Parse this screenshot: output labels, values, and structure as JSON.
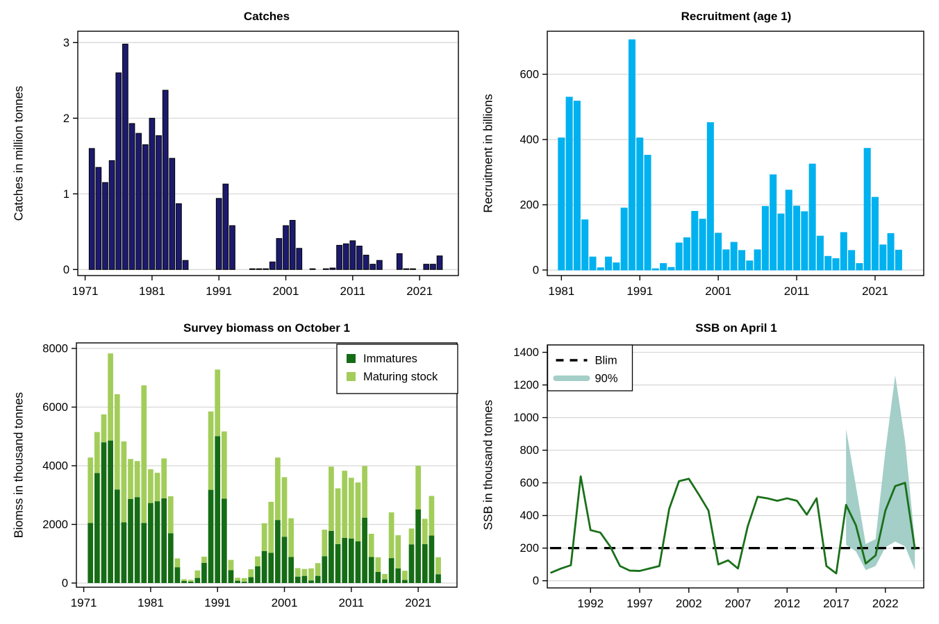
{
  "chart_data": [
    {
      "id": "catches",
      "type": "bar",
      "title": "Catches",
      "ylabel": "Catches in million tonnes",
      "bar_color": "#1c1a6e",
      "bar_stroke": "#000000",
      "ylim": [
        0,
        3
      ],
      "yticks": [
        0,
        1,
        2,
        3
      ],
      "xticks": [
        1971,
        1981,
        1991,
        2001,
        2011,
        2021
      ],
      "grid": true,
      "years": [
        1972,
        1973,
        1974,
        1975,
        1976,
        1977,
        1978,
        1979,
        1980,
        1981,
        1982,
        1983,
        1984,
        1985,
        1986,
        1987,
        1988,
        1989,
        1990,
        1991,
        1992,
        1993,
        1994,
        1995,
        1996,
        1997,
        1998,
        1999,
        2000,
        2001,
        2002,
        2003,
        2004,
        2005,
        2006,
        2007,
        2008,
        2009,
        2010,
        2011,
        2012,
        2013,
        2014,
        2015,
        2016,
        2017,
        2018,
        2019,
        2020,
        2021,
        2022,
        2023,
        2024
      ],
      "values": [
        1.6,
        1.35,
        1.15,
        1.44,
        2.6,
        2.98,
        1.93,
        1.8,
        1.65,
        2.0,
        1.77,
        2.37,
        1.47,
        0.87,
        0.12,
        0,
        0,
        0,
        0,
        0.94,
        1.13,
        0.58,
        0,
        0,
        0.01,
        0.01,
        0.01,
        0.1,
        0.41,
        0.58,
        0.65,
        0.28,
        0,
        0.01,
        0,
        0.01,
        0.02,
        0.32,
        0.34,
        0.38,
        0.31,
        0.19,
        0.07,
        0.12,
        0,
        0,
        0.21,
        0.01,
        0.01,
        0,
        0.07,
        0.07,
        0.18
      ]
    },
    {
      "id": "recruitment",
      "type": "bar",
      "title": "Recruitment (age 1)",
      "ylabel": "Recruitment in billions",
      "bar_color": "#00b1ef",
      "bar_stroke": "#00b1ef",
      "ylim": [
        0,
        720
      ],
      "yticks": [
        0,
        200,
        400,
        600
      ],
      "xticks": [
        1981,
        1991,
        2001,
        2011,
        2021
      ],
      "grid": true,
      "years": [
        1981,
        1982,
        1983,
        1984,
        1985,
        1986,
        1987,
        1988,
        1989,
        1990,
        1991,
        1992,
        1993,
        1994,
        1995,
        1996,
        1997,
        1998,
        1999,
        2000,
        2001,
        2002,
        2003,
        2004,
        2005,
        2006,
        2007,
        2008,
        2009,
        2010,
        2011,
        2012,
        2013,
        2014,
        2015,
        2016,
        2017,
        2018,
        2019,
        2020,
        2021,
        2022,
        2023,
        2024
      ],
      "values": [
        405,
        530,
        518,
        154,
        40,
        7,
        40,
        22,
        190,
        706,
        405,
        352,
        4,
        20,
        8,
        83,
        99,
        180,
        156,
        452,
        113,
        62,
        85,
        60,
        28,
        62,
        195,
        292,
        172,
        245,
        196,
        179,
        325,
        104,
        42,
        35,
        115,
        60,
        20,
        373,
        223,
        77,
        112,
        61
      ]
    },
    {
      "id": "survey-biomass",
      "type": "stacked-bar",
      "title": "Survey biomass on October 1",
      "ylabel": "Biomss in thousand tonnes",
      "ylim": [
        0,
        8000
      ],
      "yticks": [
        0,
        2000,
        4000,
        6000,
        8000
      ],
      "xticks": [
        1971,
        1981,
        1991,
        2001,
        2011,
        2021
      ],
      "grid": true,
      "legend": [
        "Immatures",
        "Maturing stock"
      ],
      "years": [
        1972,
        1973,
        1974,
        1975,
        1976,
        1977,
        1978,
        1979,
        1980,
        1981,
        1982,
        1983,
        1984,
        1985,
        1986,
        1987,
        1988,
        1989,
        1990,
        1991,
        1992,
        1993,
        1994,
        1995,
        1996,
        1997,
        1998,
        1999,
        2000,
        2001,
        2002,
        2003,
        2004,
        2005,
        2006,
        2007,
        2008,
        2009,
        2010,
        2011,
        2012,
        2013,
        2014,
        2015,
        2016,
        2017,
        2018,
        2019,
        2020,
        2021,
        2022,
        2023,
        2024
      ],
      "series": [
        {
          "name": "Immatures",
          "color": "#156c15",
          "values": [
            2050,
            3750,
            4800,
            4860,
            3190,
            2070,
            2870,
            2930,
            2050,
            2730,
            2790,
            2890,
            1700,
            540,
            70,
            50,
            175,
            690,
            3180,
            5010,
            2880,
            440,
            80,
            45,
            200,
            575,
            1090,
            1030,
            2150,
            1580,
            890,
            220,
            245,
            90,
            245,
            915,
            1780,
            1330,
            1540,
            1520,
            1420,
            2230,
            890,
            380,
            125,
            850,
            500,
            105,
            1320,
            2510,
            1330,
            1620,
            300
          ]
        },
        {
          "name": "Maturing stock",
          "color": "#a2cd5a",
          "values": [
            2230,
            1400,
            950,
            2970,
            3250,
            2760,
            1360,
            1230,
            4690,
            1150,
            970,
            1360,
            1260,
            300,
            60,
            60,
            255,
            210,
            2670,
            2270,
            2290,
            350,
            100,
            125,
            270,
            335,
            950,
            1740,
            2130,
            2030,
            1320,
            290,
            235,
            410,
            435,
            905,
            2190,
            1900,
            2290,
            2070,
            2010,
            1760,
            790,
            500,
            185,
            1560,
            1130,
            315,
            540,
            1490,
            860,
            1350,
            580
          ]
        }
      ]
    },
    {
      "id": "ssb",
      "type": "line-band",
      "title": "SSB on April 1",
      "ylabel": "SSB in thousand tonnes",
      "line_color": "#1a701a",
      "band_color": "#a4cec8",
      "blim_color": "#000000",
      "blim": 200,
      "ylim": [
        0,
        1400
      ],
      "yticks": [
        0,
        200,
        400,
        600,
        800,
        1000,
        1200,
        1400
      ],
      "xticks": [
        1992,
        1997,
        2002,
        2007,
        2012,
        2017,
        2022
      ],
      "grid": true,
      "legend": [
        "Blim",
        "90%"
      ],
      "years": [
        1988,
        1989,
        1990,
        1991,
        1992,
        1993,
        1994,
        1995,
        1996,
        1997,
        1998,
        1999,
        2000,
        2001,
        2002,
        2003,
        2004,
        2005,
        2006,
        2007,
        2008,
        2009,
        2010,
        2011,
        2012,
        2013,
        2014,
        2015,
        2016,
        2017,
        2018,
        2019,
        2020,
        2021,
        2022,
        2023,
        2024,
        2025
      ],
      "values": [
        50,
        75,
        95,
        640,
        310,
        295,
        210,
        90,
        62,
        60,
        75,
        90,
        440,
        610,
        625,
        530,
        430,
        100,
        125,
        75,
        335,
        515,
        505,
        490,
        505,
        490,
        405,
        505,
        90,
        45,
        465,
        340,
        105,
        155,
        430,
        580,
        600,
        195
      ],
      "band": {
        "years": [
          2018,
          2019,
          2020,
          2021,
          2022,
          2023,
          2024,
          2025
        ],
        "lower": [
          220,
          180,
          65,
          90,
          205,
          240,
          210,
          65
        ],
        "upper": [
          930,
          580,
          225,
          255,
          795,
          1260,
          855,
          240
        ]
      }
    }
  ]
}
